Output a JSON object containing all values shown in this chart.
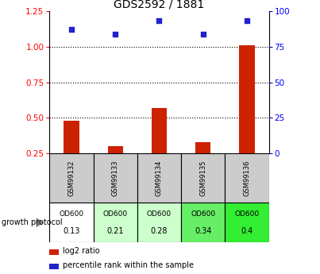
{
  "title": "GDS2592 / 1881",
  "samples": [
    "GSM99132",
    "GSM99133",
    "GSM99134",
    "GSM99135",
    "GSM99136"
  ],
  "log2_ratio": [
    0.48,
    0.3,
    0.57,
    0.33,
    1.01
  ],
  "percentile_rank": [
    87,
    84,
    93,
    84,
    93
  ],
  "ylim_left": [
    0.25,
    1.25
  ],
  "ylim_right": [
    0,
    100
  ],
  "yticks_left": [
    0.25,
    0.5,
    0.75,
    1.0,
    1.25
  ],
  "yticks_right": [
    0,
    25,
    50,
    75,
    100
  ],
  "hlines": [
    0.5,
    0.75,
    1.0
  ],
  "bar_color": "#cc2200",
  "scatter_color": "#2222cc",
  "growth_protocol_label": "growth protocol",
  "od600_values": [
    "0.13",
    "0.21",
    "0.28",
    "0.34",
    "0.4"
  ],
  "sample_cell_color": "#cccccc",
  "od_colors": [
    "#ffffff",
    "#ccffcc",
    "#ccffcc",
    "#66ee66",
    "#33ee33"
  ],
  "legend_log2": "log2 ratio",
  "legend_pct": "percentile rank within the sample",
  "bar_width": 0.35
}
